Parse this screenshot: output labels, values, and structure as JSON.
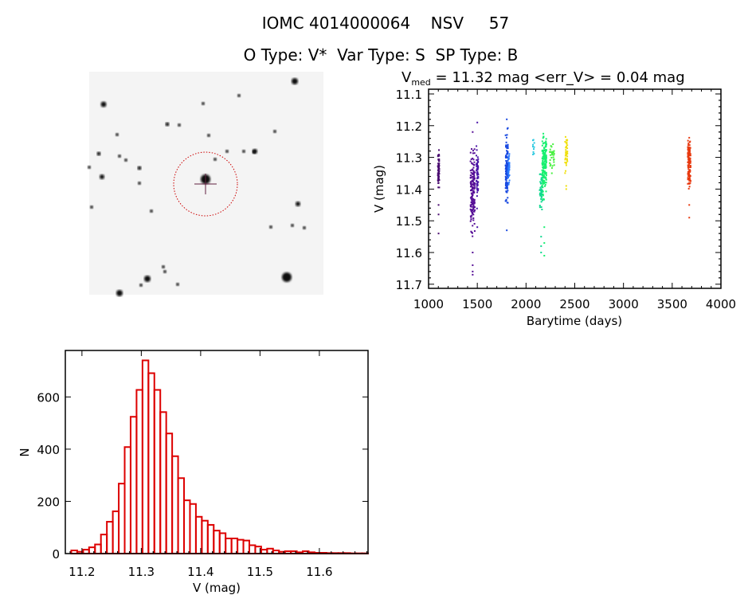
{
  "header": {
    "line1": "IOMC 4014000064    NSV     57",
    "line2": "O Type: V*  Var Type: S  SP Type: B"
  },
  "chart_data": [
    {
      "type": "scatter",
      "name": "light-curve",
      "title_main": "V",
      "title_sub": "med",
      "title_rest": " = 11.32 mag <err_V> = 0.04 mag",
      "xlabel": "Barytime (days)",
      "ylabel": "V (mag)",
      "xlim": [
        1000,
        4000
      ],
      "ylim": [
        11.085,
        11.713
      ],
      "y_inverted": true,
      "xticks": [
        "1000",
        "1500",
        "2000",
        "2500",
        "3000",
        "3500",
        "4000"
      ],
      "yticks": [
        "11.1",
        "11.2",
        "11.3",
        "11.4",
        "11.5",
        "11.6",
        "11.7"
      ],
      "clusters": [
        {
          "x": [
            1095,
            1110
          ],
          "y": [
            11.26,
            11.41
          ],
          "outliers": [
            11.45,
            11.48,
            11.54
          ],
          "n": 70,
          "color": "#4a0c70"
        },
        {
          "x": [
            1430,
            1475
          ],
          "y": [
            11.24,
            11.58
          ],
          "outliers": [
            11.22,
            11.6,
            11.64,
            11.66,
            11.67
          ],
          "n": 160,
          "color": "#560e96"
        },
        {
          "x": [
            1490,
            1510
          ],
          "y": [
            11.24,
            11.47
          ],
          "outliers": [
            11.19,
            11.52
          ],
          "n": 60,
          "color": "#4a14a8"
        },
        {
          "x": [
            1790,
            1815
          ],
          "y": [
            11.19,
            11.5
          ],
          "outliers": [
            11.18,
            11.53
          ],
          "n": 120,
          "color": "#1848e0"
        },
        {
          "x": [
            1815,
            1830
          ],
          "y": [
            11.27,
            11.4
          ],
          "outliers": [],
          "n": 40,
          "color": "#2a7cff"
        },
        {
          "x": [
            2070,
            2085
          ],
          "y": [
            11.23,
            11.3
          ],
          "outliers": [],
          "n": 10,
          "color": "#28c8e0"
        },
        {
          "x": [
            2140,
            2170
          ],
          "y": [
            11.31,
            11.48
          ],
          "outliers": [
            11.55,
            11.58,
            11.6
          ],
          "n": 50,
          "color": "#10d890"
        },
        {
          "x": [
            2165,
            2210
          ],
          "y": [
            11.19,
            11.45
          ],
          "outliers": [
            11.52,
            11.57,
            11.61
          ],
          "n": 170,
          "color": "#18f070"
        },
        {
          "x": [
            2240,
            2290
          ],
          "y": [
            11.25,
            11.34
          ],
          "outliers": [
            11.35
          ],
          "n": 30,
          "color": "#48f040"
        },
        {
          "x": [
            2400,
            2425
          ],
          "y": [
            11.21,
            11.36
          ],
          "outliers": [
            11.39,
            11.4
          ],
          "n": 40,
          "color": "#f0e010"
        },
        {
          "x": [
            3660,
            3690
          ],
          "y": [
            11.22,
            11.42
          ],
          "outliers": [
            11.45,
            11.49
          ],
          "n": 120,
          "color": "#e83a10"
        }
      ]
    },
    {
      "type": "bar",
      "name": "histogram",
      "xlabel": "V (mag)",
      "ylabel": "N",
      "xlim": [
        11.172,
        11.682
      ],
      "ylim": [
        0,
        778
      ],
      "xticks": [
        "11.2",
        "11.3",
        "11.4",
        "11.5",
        "11.6"
      ],
      "yticks": [
        "0",
        "200",
        "400",
        "600"
      ],
      "bin_start": 11.182,
      "bin_width": 0.01,
      "values": [
        12,
        7,
        15,
        24,
        35,
        73,
        122,
        162,
        268,
        408,
        524,
        627,
        740,
        691,
        627,
        542,
        460,
        373,
        289,
        204,
        190,
        141,
        126,
        110,
        88,
        78,
        58,
        58,
        53,
        50,
        32,
        27,
        15,
        19,
        12,
        7,
        9,
        9,
        5,
        9,
        5,
        3,
        3,
        2,
        2,
        2,
        2,
        1,
        1,
        1
      ],
      "color": "#dd0000"
    }
  ],
  "image_panel": {
    "circle_color": "#cc0000",
    "background": "#f4f4f4"
  }
}
